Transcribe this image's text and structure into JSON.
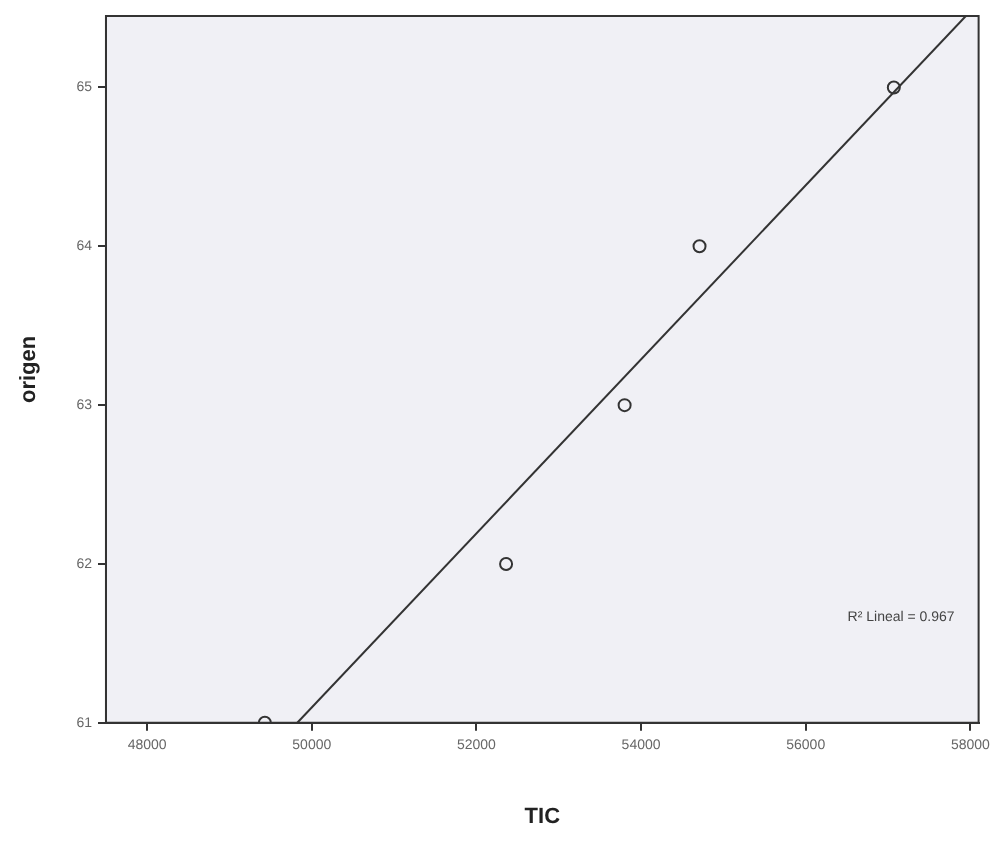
{
  "chart_data": {
    "type": "scatter",
    "xlabel": "TIC",
    "ylabel": "origen",
    "xlim": [
      47500,
      58100
    ],
    "xticks": [
      48000,
      50000,
      52000,
      54000,
      56000,
      58000
    ],
    "ylim": [
      61,
      65.45
    ],
    "yticks": [
      61,
      62,
      63,
      64,
      65
    ],
    "grid": false,
    "legend": false,
    "marker": "circle",
    "series": [
      {
        "color": "#333333",
        "x": [
          49430,
          52360,
          53800,
          54710,
          57070
        ],
        "values": [
          61,
          62,
          63,
          64,
          65
        ]
      },
      {
        "type": "line",
        "marker": "none",
        "color": "#333333",
        "x": [
          49824,
          57945
        ],
        "values": [
          61,
          65.45
        ]
      }
    ],
    "annotations": [
      "R² Lineal = 0.967"
    ]
  }
}
